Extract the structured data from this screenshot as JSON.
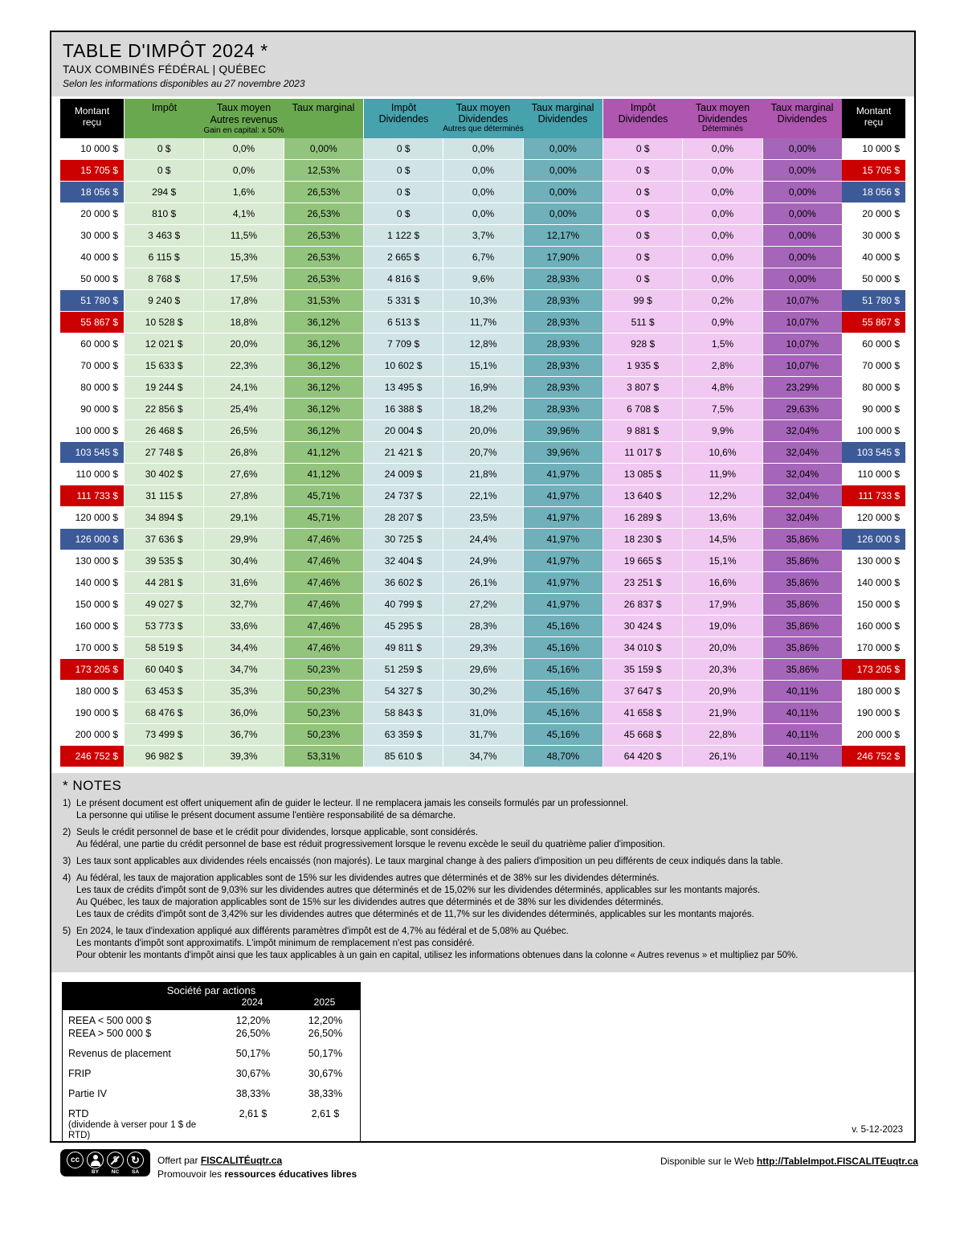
{
  "header": {
    "title": "TABLE D'IMPÔT 2024 *",
    "subtitle": "TAUX COMBINÉS FÉDÉRAL | QUÉBEC",
    "as_of": "Selon les informations disponibles au 27 novembre 2023"
  },
  "colors": {
    "gray_band": "#d9d9d9",
    "green_header": "#6aa84f",
    "green_light": "#d9ead3",
    "green_mid": "#93c47d",
    "teal_header": "#46a2ad",
    "teal_light": "#d0e4e6",
    "teal_mid": "#6fb0ba",
    "purple_header": "#ae56b0",
    "purple_light": "#f1c8f2",
    "purple_mid": "#a565b8",
    "highlight_red": "#cc0000",
    "highlight_blue": "#3d5a98"
  },
  "table": {
    "montant_header": "Montant reçu",
    "groups": [
      {
        "key": "autres-revenus",
        "cols": [
          "Impôt",
          "Taux moyen",
          "Taux marginal"
        ],
        "col_sub": "",
        "lines": [
          {
            "text": "Autres revenus",
            "size": "lg"
          },
          {
            "text": "Gain en capital: x 50%",
            "size": "sm"
          }
        ]
      },
      {
        "key": "dividendes-autres-que-determines",
        "cols": [
          "Impôt",
          "Taux moyen",
          "Taux marginal"
        ],
        "col_sub": "Dividendes",
        "lines": [
          {
            "text": "Autres que déterminés",
            "size": "sm"
          }
        ]
      },
      {
        "key": "dividendes-determines",
        "cols": [
          "Impôt",
          "Taux moyen",
          "Taux marginal"
        ],
        "col_sub": "Dividendes",
        "lines": [
          {
            "text": "Déterminés",
            "size": "sm"
          }
        ]
      }
    ],
    "rows": [
      {
        "m": "10 000 $",
        "hl": "",
        "c": [
          "0 $",
          "0,0%",
          "0,00%",
          "0 $",
          "0,0%",
          "0,00%",
          "0 $",
          "0,0%",
          "0,00%"
        ]
      },
      {
        "m": "15 705 $",
        "hl": "red",
        "c": [
          "0 $",
          "0,0%",
          "12,53%",
          "0 $",
          "0,0%",
          "0,00%",
          "0 $",
          "0,0%",
          "0,00%"
        ]
      },
      {
        "m": "18 056 $",
        "hl": "blue",
        "c": [
          "294 $",
          "1,6%",
          "26,53%",
          "0 $",
          "0,0%",
          "0,00%",
          "0 $",
          "0,0%",
          "0,00%"
        ]
      },
      {
        "m": "20 000 $",
        "hl": "",
        "c": [
          "810 $",
          "4,1%",
          "26,53%",
          "0 $",
          "0,0%",
          "0,00%",
          "0 $",
          "0,0%",
          "0,00%"
        ]
      },
      {
        "m": "30 000 $",
        "hl": "",
        "c": [
          "3 463 $",
          "11,5%",
          "26,53%",
          "1 122 $",
          "3,7%",
          "12,17%",
          "0 $",
          "0,0%",
          "0,00%"
        ]
      },
      {
        "m": "40 000 $",
        "hl": "",
        "c": [
          "6 115 $",
          "15,3%",
          "26,53%",
          "2 665 $",
          "6,7%",
          "17,90%",
          "0 $",
          "0,0%",
          "0,00%"
        ]
      },
      {
        "m": "50 000 $",
        "hl": "",
        "c": [
          "8 768 $",
          "17,5%",
          "26,53%",
          "4 816 $",
          "9,6%",
          "28,93%",
          "0 $",
          "0,0%",
          "0,00%"
        ]
      },
      {
        "m": "51 780 $",
        "hl": "blue",
        "c": [
          "9 240 $",
          "17,8%",
          "31,53%",
          "5 331 $",
          "10,3%",
          "28,93%",
          "99 $",
          "0,2%",
          "10,07%"
        ]
      },
      {
        "m": "55 867 $",
        "hl": "red",
        "c": [
          "10 528 $",
          "18,8%",
          "36,12%",
          "6 513 $",
          "11,7%",
          "28,93%",
          "511 $",
          "0,9%",
          "10,07%"
        ]
      },
      {
        "m": "60 000 $",
        "hl": "",
        "c": [
          "12 021 $",
          "20,0%",
          "36,12%",
          "7 709 $",
          "12,8%",
          "28,93%",
          "928 $",
          "1,5%",
          "10,07%"
        ]
      },
      {
        "m": "70 000 $",
        "hl": "",
        "c": [
          "15 633 $",
          "22,3%",
          "36,12%",
          "10 602 $",
          "15,1%",
          "28,93%",
          "1 935 $",
          "2,8%",
          "10,07%"
        ]
      },
      {
        "m": "80 000 $",
        "hl": "",
        "c": [
          "19 244 $",
          "24,1%",
          "36,12%",
          "13 495 $",
          "16,9%",
          "28,93%",
          "3 807 $",
          "4,8%",
          "23,29%"
        ]
      },
      {
        "m": "90 000 $",
        "hl": "",
        "c": [
          "22 856 $",
          "25,4%",
          "36,12%",
          "16 388 $",
          "18,2%",
          "28,93%",
          "6 708 $",
          "7,5%",
          "29,63%"
        ]
      },
      {
        "m": "100 000 $",
        "hl": "",
        "c": [
          "26 468 $",
          "26,5%",
          "36,12%",
          "20 004 $",
          "20,0%",
          "39,96%",
          "9 881 $",
          "9,9%",
          "32,04%"
        ]
      },
      {
        "m": "103 545 $",
        "hl": "blue",
        "c": [
          "27 748 $",
          "26,8%",
          "41,12%",
          "21 421 $",
          "20,7%",
          "39,96%",
          "11 017 $",
          "10,6%",
          "32,04%"
        ]
      },
      {
        "m": "110 000 $",
        "hl": "",
        "c": [
          "30 402 $",
          "27,6%",
          "41,12%",
          "24 009 $",
          "21,8%",
          "41,97%",
          "13 085 $",
          "11,9%",
          "32,04%"
        ]
      },
      {
        "m": "111 733 $",
        "hl": "red",
        "c": [
          "31 115 $",
          "27,8%",
          "45,71%",
          "24 737 $",
          "22,1%",
          "41,97%",
          "13 640 $",
          "12,2%",
          "32,04%"
        ]
      },
      {
        "m": "120 000 $",
        "hl": "",
        "c": [
          "34 894 $",
          "29,1%",
          "45,71%",
          "28 207 $",
          "23,5%",
          "41,97%",
          "16 289 $",
          "13,6%",
          "32,04%"
        ]
      },
      {
        "m": "126 000 $",
        "hl": "blue",
        "c": [
          "37 636 $",
          "29,9%",
          "47,46%",
          "30 725 $",
          "24,4%",
          "41,97%",
          "18 230 $",
          "14,5%",
          "35,86%"
        ]
      },
      {
        "m": "130 000 $",
        "hl": "",
        "c": [
          "39 535 $",
          "30,4%",
          "47,46%",
          "32 404 $",
          "24,9%",
          "41,97%",
          "19 665 $",
          "15,1%",
          "35,86%"
        ]
      },
      {
        "m": "140 000 $",
        "hl": "",
        "c": [
          "44 281 $",
          "31,6%",
          "47,46%",
          "36 602 $",
          "26,1%",
          "41,97%",
          "23 251 $",
          "16,6%",
          "35,86%"
        ]
      },
      {
        "m": "150 000 $",
        "hl": "",
        "c": [
          "49 027 $",
          "32,7%",
          "47,46%",
          "40 799 $",
          "27,2%",
          "41,97%",
          "26 837 $",
          "17,9%",
          "35,86%"
        ]
      },
      {
        "m": "160 000 $",
        "hl": "",
        "c": [
          "53 773 $",
          "33,6%",
          "47,46%",
          "45 295 $",
          "28,3%",
          "45,16%",
          "30 424 $",
          "19,0%",
          "35,86%"
        ]
      },
      {
        "m": "170 000 $",
        "hl": "",
        "c": [
          "58 519 $",
          "34,4%",
          "47,46%",
          "49 811 $",
          "29,3%",
          "45,16%",
          "34 010 $",
          "20,0%",
          "35,86%"
        ]
      },
      {
        "m": "173 205 $",
        "hl": "red",
        "c": [
          "60 040 $",
          "34,7%",
          "50,23%",
          "51 259 $",
          "29,6%",
          "45,16%",
          "35 159 $",
          "20,3%",
          "35,86%"
        ]
      },
      {
        "m": "180 000 $",
        "hl": "",
        "c": [
          "63 453 $",
          "35,3%",
          "50,23%",
          "54 327 $",
          "30,2%",
          "45,16%",
          "37 647 $",
          "20,9%",
          "40,11%"
        ]
      },
      {
        "m": "190 000 $",
        "hl": "",
        "c": [
          "68 476 $",
          "36,0%",
          "50,23%",
          "58 843 $",
          "31,0%",
          "45,16%",
          "41 658 $",
          "21,9%",
          "40,11%"
        ]
      },
      {
        "m": "200 000 $",
        "hl": "",
        "c": [
          "73 499 $",
          "36,7%",
          "50,23%",
          "63 359 $",
          "31,7%",
          "45,16%",
          "45 668 $",
          "22,8%",
          "40,11%"
        ]
      },
      {
        "m": "246 752 $",
        "hl": "red",
        "c": [
          "96 982 $",
          "39,3%",
          "53,31%",
          "85 610 $",
          "34,7%",
          "48,70%",
          "64 420 $",
          "26,1%",
          "40,11%"
        ]
      }
    ]
  },
  "notes": {
    "heading": "* NOTES",
    "items": [
      {
        "num": "1)",
        "lines": [
          "Le présent document est offert uniquement afin de guider le lecteur. Il ne remplacera jamais les conseils formulés par un professionnel.",
          "La personne qui utilise le présent document assume l'entière responsabilité de sa démarche."
        ]
      },
      {
        "num": "2)",
        "lines": [
          "Seuls le crédit personnel de base et le crédit pour dividendes, lorsque applicable, sont considérés.",
          "Au fédéral, une partie du crédit personnel de base est réduit progressivement lorsque le revenu excède le seuil du quatrième palier d'imposition."
        ]
      },
      {
        "num": "3)",
        "lines": [
          "Les taux sont applicables aux dividendes réels encaissés (non majorés). Le taux marginal change à des paliers d'imposition un peu différents de ceux indiqués dans la table."
        ]
      },
      {
        "num": "4)",
        "lines": [
          "Au fédéral, les taux de majoration applicables sont de 15% sur les dividendes autres que déterminés et de 38% sur les dividendes déterminés.",
          "Les taux de crédits d'impôt sont de 9,03% sur les dividendes autres que déterminés et de 15,02% sur les dividendes déterminés, applicables sur les montants majorés.",
          "Au Québec, les taux de majoration applicables sont de 15% sur les dividendes autres que déterminés et de 38% sur les dividendes déterminés.",
          "Les taux de crédits d'impôt sont de 3,42% sur les dividendes autres que déterminés et de 11,7% sur les dividendes déterminés, applicables sur les montants majorés."
        ]
      },
      {
        "num": "5)",
        "lines": [
          "En 2024, le taux d'indexation appliqué aux différents paramètres d'impôt est de 4,7% au fédéral et de 5,08% au Québec.",
          "Les montants d'impôt sont approximatifs. L'impôt minimum de remplacement n'est pas considéré.",
          "Pour obtenir les montants d'impôt ainsi que les taux applicables à un gain en capital, utilisez les informations obtenues dans la colonne « Autres revenus » et multipliez par 50%."
        ]
      }
    ]
  },
  "societe": {
    "title": "Société par actions",
    "years": [
      "2024",
      "2025"
    ],
    "rows": [
      {
        "label": "REEA < 500 000 $",
        "sub": "",
        "values": [
          "12,20%",
          "12,20%"
        ],
        "gap": false
      },
      {
        "label": "REEA > 500 000 $",
        "sub": "",
        "values": [
          "26,50%",
          "26,50%"
        ],
        "gap": false
      },
      {
        "label": "Revenus de placement",
        "sub": "",
        "values": [
          "50,17%",
          "50,17%"
        ],
        "gap": true
      },
      {
        "label": "FRIP",
        "sub": "",
        "values": [
          "30,67%",
          "30,67%"
        ],
        "gap": true
      },
      {
        "label": "Partie IV",
        "sub": "",
        "values": [
          "38,33%",
          "38,33%"
        ],
        "gap": true
      },
      {
        "label": "RTD",
        "sub": "(dividende à verser pour 1 $ de RTD)",
        "values": [
          "2,61 $",
          "2,61 $"
        ],
        "gap": true
      }
    ]
  },
  "version": "v. 5-12-2023",
  "footer": {
    "cc": {
      "glyphs": {
        "cc": "cc",
        "nc": "$",
        "sa": "↻"
      },
      "sub_labels": [
        "",
        "BY",
        "NC",
        "SA"
      ]
    },
    "offert_par": "Offert par",
    "link1": "FISCALITÉuqtr.ca",
    "promo_prefix": "Promouvoir les",
    "promo_bold": "ressources éducatives libres",
    "web_prefix": "Disponible sur le Web",
    "web_link": "http://TableImpot.FISCALITEuqtr.ca"
  }
}
